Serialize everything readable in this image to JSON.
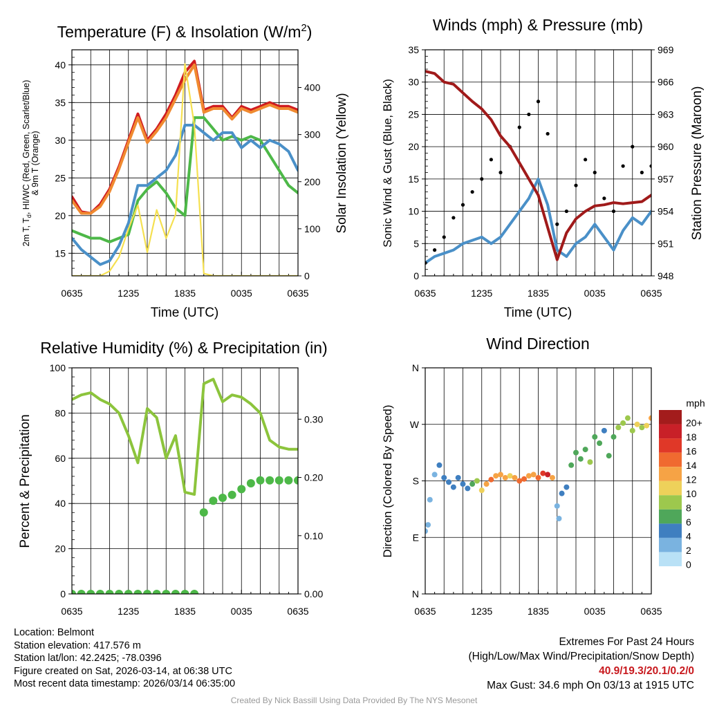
{
  "charts": {
    "temperature": {
      "title": "Temperature (F) & Insolation (W/m",
      "title_sup": "2",
      "title_end": ")",
      "ylabel_lines": [
        "2m T, T",
        "d",
        ", HI/WC (Red, Green, Scarlet/Blue)",
        "& 9m T (Orange)"
      ],
      "y2label": "Solar Insolation (Yellow)",
      "xlabel": "Time (UTC)"
    },
    "winds": {
      "title": "Winds (mph) & Pressure (mb)",
      "ylabel": "Sonic Wind & Gust (Blue, Black)",
      "y2label": "Station Pressure (Maroon)",
      "xlabel": "Time (UTC)"
    },
    "humidity": {
      "title": "Relative Humidity (%) & Precipitation (in)",
      "ylabel": "Percent & Precipitation"
    },
    "direction": {
      "title": "Wind Direction",
      "ylabel": "Direction (Colored By Speed)",
      "legend_title": "mph"
    }
  },
  "chart_data": [
    {
      "type": "line",
      "title": "Temperature (F) & Insolation (W/m2)",
      "xlabel": "Time (UTC)",
      "ylabel": "2m T, Td, HI/WC (Red, Green, Scarlet/Blue) & 9m T (Orange)",
      "y2label": "Solar Insolation (Yellow)",
      "x_ticks": [
        "0635",
        "1235",
        "1835",
        "0035",
        "0635"
      ],
      "ylim": [
        12,
        42
      ],
      "y_ticks": [
        15,
        20,
        25,
        30,
        35,
        40
      ],
      "y2lim": [
        0,
        480
      ],
      "y2_ticks": [
        0,
        100,
        200,
        300,
        400
      ],
      "x_hours": [
        0,
        1,
        2,
        3,
        4,
        5,
        6,
        7,
        8,
        9,
        10,
        11,
        12,
        13,
        14,
        15,
        16,
        17,
        18,
        19,
        20,
        21,
        22,
        23,
        24
      ],
      "series": [
        {
          "name": "2m T",
          "color": "#d01c20",
          "values": [
            22.5,
            20.5,
            20.3,
            21.5,
            23.5,
            26.5,
            30,
            33.5,
            30,
            31.5,
            33.5,
            36,
            39,
            40.5,
            34,
            34.5,
            34.5,
            33,
            34.5,
            34,
            34.5,
            35,
            34.5,
            34.5,
            34
          ]
        },
        {
          "name": "9m T",
          "color": "#f08a30",
          "values": [
            22,
            20.3,
            20.3,
            21.2,
            23.2,
            26.2,
            29.7,
            33,
            29.7,
            31.2,
            33,
            35.5,
            38,
            40,
            33.7,
            34.2,
            34.2,
            32.8,
            34.2,
            33.7,
            34.2,
            34.7,
            34.2,
            34.2,
            33.7
          ]
        },
        {
          "name": "Td",
          "color": "#4db848",
          "values": [
            18,
            17.5,
            17,
            17,
            16.5,
            17,
            17.5,
            22,
            23.5,
            24.5,
            23,
            21,
            20,
            33,
            33,
            31.5,
            30,
            30.5,
            30,
            30.5,
            30,
            28,
            26,
            24,
            23
          ]
        },
        {
          "name": "HI/WC",
          "color": "#4a90c8",
          "values": [
            17,
            15.5,
            14.5,
            13.5,
            14,
            16,
            19,
            24,
            24,
            25,
            26,
            28,
            32,
            32,
            31,
            30,
            31,
            31,
            29,
            30,
            29,
            30,
            29.5,
            28.5,
            26
          ]
        },
        {
          "name": "Solar Insolation",
          "color": "#f5e050",
          "axis": "y2",
          "values": [
            0,
            0,
            0,
            0,
            10,
            40,
            100,
            150,
            50,
            140,
            80,
            130,
            450,
            320,
            5,
            0,
            0,
            0,
            0,
            0,
            0,
            0,
            0,
            0,
            0
          ]
        }
      ]
    },
    {
      "type": "line",
      "title": "Winds (mph) & Pressure (mb)",
      "xlabel": "Time (UTC)",
      "ylabel": "Sonic Wind & Gust (Blue, Black)",
      "y2label": "Station Pressure (Maroon)",
      "x_ticks": [
        "0635",
        "1235",
        "1835",
        "0035",
        "0635"
      ],
      "ylim": [
        0,
        35
      ],
      "y_ticks": [
        0,
        5,
        10,
        15,
        20,
        25,
        30,
        35
      ],
      "y2lim": [
        948,
        969
      ],
      "y2_ticks": [
        948,
        951,
        954,
        957,
        960,
        963,
        966,
        969
      ],
      "x_hours": [
        0,
        1,
        2,
        3,
        4,
        5,
        6,
        7,
        8,
        9,
        10,
        11,
        12,
        13,
        14,
        15,
        16,
        17,
        18,
        19,
        20,
        21,
        22,
        23,
        24
      ],
      "series": [
        {
          "name": "Sonic Wind",
          "color": "#4a90c8",
          "values": [
            2,
            3,
            3.5,
            4,
            5,
            5.5,
            6,
            5,
            6,
            8,
            10,
            12,
            15,
            11,
            4,
            3,
            5,
            6,
            8,
            6,
            4,
            7,
            9,
            8,
            10
          ]
        },
        {
          "name": "Gust",
          "color": "#000000",
          "marker": "dot",
          "values": [
            2,
            4,
            6,
            9,
            11,
            13,
            15,
            18,
            16,
            20,
            23,
            25,
            27,
            22,
            8,
            10,
            14,
            18,
            16,
            12,
            10,
            17,
            20,
            16,
            17
          ]
        },
        {
          "name": "Station Pressure",
          "color": "#a01a1a",
          "axis": "y2",
          "values": [
            967,
            966.8,
            966,
            965.8,
            965,
            964.2,
            963.5,
            962.5,
            961,
            960,
            958.5,
            957,
            955.5,
            952.5,
            949.5,
            952,
            953.3,
            954,
            954.5,
            954.6,
            954.8,
            954.7,
            954.8,
            954.9,
            955.5
          ]
        }
      ]
    },
    {
      "type": "line",
      "title": "Relative Humidity (%) & Precipitation (in)",
      "ylabel": "Percent & Precipitation",
      "x_ticks": [
        "0635",
        "1235",
        "1835",
        "0035",
        "0635"
      ],
      "ylim": [
        0,
        100
      ],
      "y_ticks": [
        0,
        20,
        40,
        60,
        80,
        100
      ],
      "y2lim": [
        0,
        0.3882
      ],
      "y2_ticks": [
        "0.00",
        "0.10",
        "0.20",
        "0.30"
      ],
      "x_hours": [
        0,
        1,
        2,
        3,
        4,
        5,
        6,
        7,
        8,
        9,
        10,
        11,
        12,
        13,
        14,
        15,
        16,
        17,
        18,
        19,
        20,
        21,
        22,
        23,
        24
      ],
      "series": [
        {
          "name": "Relative Humidity",
          "color": "#8cc43c",
          "values": [
            86,
            88,
            89,
            86,
            84,
            80,
            70,
            58,
            82,
            78,
            60,
            70,
            45,
            44,
            93,
            95,
            85,
            88,
            87,
            84,
            80,
            68,
            65,
            64,
            64
          ]
        },
        {
          "name": "Precipitation",
          "color": "#4db848",
          "axis": "y2",
          "marker": "dot",
          "values": [
            0,
            0,
            0,
            0,
            0,
            0,
            0,
            0,
            0,
            0,
            0,
            0,
            0,
            0,
            0.14,
            0.16,
            0.165,
            0.17,
            0.18,
            0.19,
            0.195,
            0.195,
            0.195,
            0.195,
            0.195
          ]
        }
      ]
    },
    {
      "type": "scatter",
      "title": "Wind Direction",
      "ylabel": "Direction (Colored By Speed)",
      "x_ticks": [
        "0635",
        "1235",
        "1835",
        "0035",
        "0635"
      ],
      "ylim": [
        0,
        360
      ],
      "y_ticks": [
        "N",
        "E",
        "S",
        "W",
        "N"
      ],
      "legend_title": "mph",
      "legend_labels": [
        "20+",
        "18",
        "16",
        "14",
        "12",
        "10",
        "8",
        "6",
        "4",
        "2",
        "0"
      ],
      "legend_colors": [
        "#a31c1c",
        "#c82028",
        "#e03828",
        "#f06a30",
        "#f6a345",
        "#eed15a",
        "#9dc84d",
        "#4fa75a",
        "#3f7fc0",
        "#7ab3e0",
        "#b9e1f6"
      ],
      "series": [
        {
          "name": "Wind Direction",
          "marker": "dot",
          "x_hours": [
            0,
            0.3,
            0.5,
            1,
            1.5,
            2,
            2.5,
            3,
            3.5,
            4,
            4.5,
            5,
            5.5,
            6,
            6.5,
            7,
            7.5,
            8,
            8.5,
            9,
            9.5,
            10,
            10.5,
            11,
            11.5,
            12,
            12.5,
            13,
            13.5,
            14,
            14.2,
            14.5,
            15,
            15.5,
            16,
            16.5,
            17,
            17.5,
            18,
            18.5,
            19,
            19.5,
            20,
            20.5,
            21,
            21.5,
            22,
            22.5,
            23,
            23.5,
            24
          ],
          "values": [
            100,
            110,
            150,
            190,
            205,
            185,
            178,
            170,
            185,
            175,
            168,
            175,
            180,
            165,
            175,
            182,
            188,
            190,
            185,
            188,
            185,
            180,
            183,
            188,
            190,
            185,
            192,
            190,
            185,
            140,
            120,
            160,
            170,
            205,
            225,
            215,
            230,
            210,
            250,
            240,
            260,
            220,
            250,
            265,
            272,
            280,
            260,
            270,
            265,
            268,
            280
          ],
          "speeds": [
            1,
            2,
            2,
            2,
            3,
            3,
            4,
            3,
            4,
            4,
            4,
            5,
            8,
            10,
            11,
            13,
            12,
            12,
            11,
            10,
            12,
            14,
            13,
            12,
            11,
            14,
            16,
            18,
            12,
            2,
            2,
            3,
            4,
            5,
            6,
            5,
            6,
            7,
            6,
            5,
            4,
            5,
            6,
            7,
            8,
            7,
            8,
            9,
            8,
            10,
            11
          ]
        }
      ]
    }
  ],
  "info": {
    "location": "Location: Belmont",
    "elevation": "Station elevation: 417.576 m",
    "latlon": "Station lat/lon: 42.2425; -78.0396",
    "created": "Figure created on Sat, 2026-03-14, at 06:38 UTC",
    "recent": "Most recent data timestamp: 2026/03/14 06:35:00"
  },
  "extremes": {
    "header": "Extremes For Past 24 Hours",
    "subheader": "(High/Low/Max Wind/Precipitation/Snow Depth)",
    "values": "40.9/19.3/20.1/0.2/0",
    "max_gust": "Max Gust: 34.6 mph On 03/13 at 1915 UTC"
  },
  "credit": "Created By Nick Bassill Using Data Provided By The NYS Mesonet"
}
